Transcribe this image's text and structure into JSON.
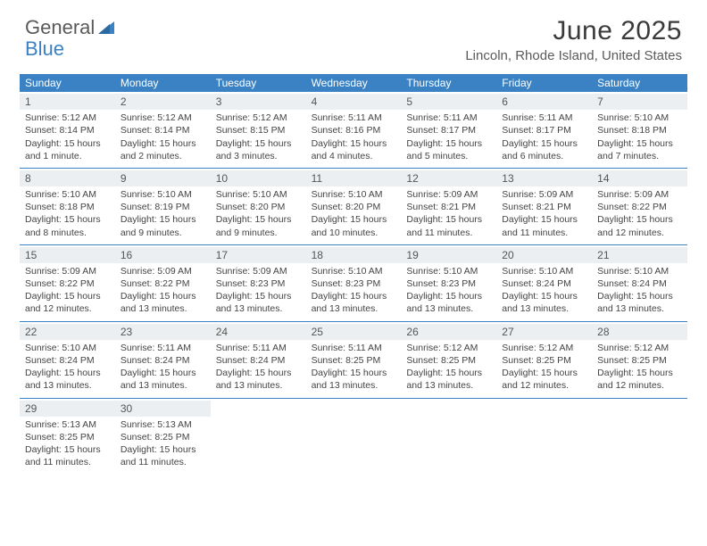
{
  "logo": {
    "text1": "General",
    "text2": "Blue"
  },
  "title": "June 2025",
  "location": "Lincoln, Rhode Island, United States",
  "colors": {
    "header_bg": "#3b82c4",
    "header_text": "#ffffff",
    "daynum_bg": "#eceff1",
    "border": "#3b82c4",
    "body_text": "#444444"
  },
  "day_headers": [
    "Sunday",
    "Monday",
    "Tuesday",
    "Wednesday",
    "Thursday",
    "Friday",
    "Saturday"
  ],
  "weeks": [
    [
      {
        "num": "1",
        "sunrise": "Sunrise: 5:12 AM",
        "sunset": "Sunset: 8:14 PM",
        "daylight1": "Daylight: 15 hours",
        "daylight2": "and 1 minute."
      },
      {
        "num": "2",
        "sunrise": "Sunrise: 5:12 AM",
        "sunset": "Sunset: 8:14 PM",
        "daylight1": "Daylight: 15 hours",
        "daylight2": "and 2 minutes."
      },
      {
        "num": "3",
        "sunrise": "Sunrise: 5:12 AM",
        "sunset": "Sunset: 8:15 PM",
        "daylight1": "Daylight: 15 hours",
        "daylight2": "and 3 minutes."
      },
      {
        "num": "4",
        "sunrise": "Sunrise: 5:11 AM",
        "sunset": "Sunset: 8:16 PM",
        "daylight1": "Daylight: 15 hours",
        "daylight2": "and 4 minutes."
      },
      {
        "num": "5",
        "sunrise": "Sunrise: 5:11 AM",
        "sunset": "Sunset: 8:17 PM",
        "daylight1": "Daylight: 15 hours",
        "daylight2": "and 5 minutes."
      },
      {
        "num": "6",
        "sunrise": "Sunrise: 5:11 AM",
        "sunset": "Sunset: 8:17 PM",
        "daylight1": "Daylight: 15 hours",
        "daylight2": "and 6 minutes."
      },
      {
        "num": "7",
        "sunrise": "Sunrise: 5:10 AM",
        "sunset": "Sunset: 8:18 PM",
        "daylight1": "Daylight: 15 hours",
        "daylight2": "and 7 minutes."
      }
    ],
    [
      {
        "num": "8",
        "sunrise": "Sunrise: 5:10 AM",
        "sunset": "Sunset: 8:18 PM",
        "daylight1": "Daylight: 15 hours",
        "daylight2": "and 8 minutes."
      },
      {
        "num": "9",
        "sunrise": "Sunrise: 5:10 AM",
        "sunset": "Sunset: 8:19 PM",
        "daylight1": "Daylight: 15 hours",
        "daylight2": "and 9 minutes."
      },
      {
        "num": "10",
        "sunrise": "Sunrise: 5:10 AM",
        "sunset": "Sunset: 8:20 PM",
        "daylight1": "Daylight: 15 hours",
        "daylight2": "and 9 minutes."
      },
      {
        "num": "11",
        "sunrise": "Sunrise: 5:10 AM",
        "sunset": "Sunset: 8:20 PM",
        "daylight1": "Daylight: 15 hours",
        "daylight2": "and 10 minutes."
      },
      {
        "num": "12",
        "sunrise": "Sunrise: 5:09 AM",
        "sunset": "Sunset: 8:21 PM",
        "daylight1": "Daylight: 15 hours",
        "daylight2": "and 11 minutes."
      },
      {
        "num": "13",
        "sunrise": "Sunrise: 5:09 AM",
        "sunset": "Sunset: 8:21 PM",
        "daylight1": "Daylight: 15 hours",
        "daylight2": "and 11 minutes."
      },
      {
        "num": "14",
        "sunrise": "Sunrise: 5:09 AM",
        "sunset": "Sunset: 8:22 PM",
        "daylight1": "Daylight: 15 hours",
        "daylight2": "and 12 minutes."
      }
    ],
    [
      {
        "num": "15",
        "sunrise": "Sunrise: 5:09 AM",
        "sunset": "Sunset: 8:22 PM",
        "daylight1": "Daylight: 15 hours",
        "daylight2": "and 12 minutes."
      },
      {
        "num": "16",
        "sunrise": "Sunrise: 5:09 AM",
        "sunset": "Sunset: 8:22 PM",
        "daylight1": "Daylight: 15 hours",
        "daylight2": "and 13 minutes."
      },
      {
        "num": "17",
        "sunrise": "Sunrise: 5:09 AM",
        "sunset": "Sunset: 8:23 PM",
        "daylight1": "Daylight: 15 hours",
        "daylight2": "and 13 minutes."
      },
      {
        "num": "18",
        "sunrise": "Sunrise: 5:10 AM",
        "sunset": "Sunset: 8:23 PM",
        "daylight1": "Daylight: 15 hours",
        "daylight2": "and 13 minutes."
      },
      {
        "num": "19",
        "sunrise": "Sunrise: 5:10 AM",
        "sunset": "Sunset: 8:23 PM",
        "daylight1": "Daylight: 15 hours",
        "daylight2": "and 13 minutes."
      },
      {
        "num": "20",
        "sunrise": "Sunrise: 5:10 AM",
        "sunset": "Sunset: 8:24 PM",
        "daylight1": "Daylight: 15 hours",
        "daylight2": "and 13 minutes."
      },
      {
        "num": "21",
        "sunrise": "Sunrise: 5:10 AM",
        "sunset": "Sunset: 8:24 PM",
        "daylight1": "Daylight: 15 hours",
        "daylight2": "and 13 minutes."
      }
    ],
    [
      {
        "num": "22",
        "sunrise": "Sunrise: 5:10 AM",
        "sunset": "Sunset: 8:24 PM",
        "daylight1": "Daylight: 15 hours",
        "daylight2": "and 13 minutes."
      },
      {
        "num": "23",
        "sunrise": "Sunrise: 5:11 AM",
        "sunset": "Sunset: 8:24 PM",
        "daylight1": "Daylight: 15 hours",
        "daylight2": "and 13 minutes."
      },
      {
        "num": "24",
        "sunrise": "Sunrise: 5:11 AM",
        "sunset": "Sunset: 8:24 PM",
        "daylight1": "Daylight: 15 hours",
        "daylight2": "and 13 minutes."
      },
      {
        "num": "25",
        "sunrise": "Sunrise: 5:11 AM",
        "sunset": "Sunset: 8:25 PM",
        "daylight1": "Daylight: 15 hours",
        "daylight2": "and 13 minutes."
      },
      {
        "num": "26",
        "sunrise": "Sunrise: 5:12 AM",
        "sunset": "Sunset: 8:25 PM",
        "daylight1": "Daylight: 15 hours",
        "daylight2": "and 13 minutes."
      },
      {
        "num": "27",
        "sunrise": "Sunrise: 5:12 AM",
        "sunset": "Sunset: 8:25 PM",
        "daylight1": "Daylight: 15 hours",
        "daylight2": "and 12 minutes."
      },
      {
        "num": "28",
        "sunrise": "Sunrise: 5:12 AM",
        "sunset": "Sunset: 8:25 PM",
        "daylight1": "Daylight: 15 hours",
        "daylight2": "and 12 minutes."
      }
    ],
    [
      {
        "num": "29",
        "sunrise": "Sunrise: 5:13 AM",
        "sunset": "Sunset: 8:25 PM",
        "daylight1": "Daylight: 15 hours",
        "daylight2": "and 11 minutes."
      },
      {
        "num": "30",
        "sunrise": "Sunrise: 5:13 AM",
        "sunset": "Sunset: 8:25 PM",
        "daylight1": "Daylight: 15 hours",
        "daylight2": "and 11 minutes."
      },
      {
        "empty": true
      },
      {
        "empty": true
      },
      {
        "empty": true
      },
      {
        "empty": true
      },
      {
        "empty": true
      }
    ]
  ]
}
